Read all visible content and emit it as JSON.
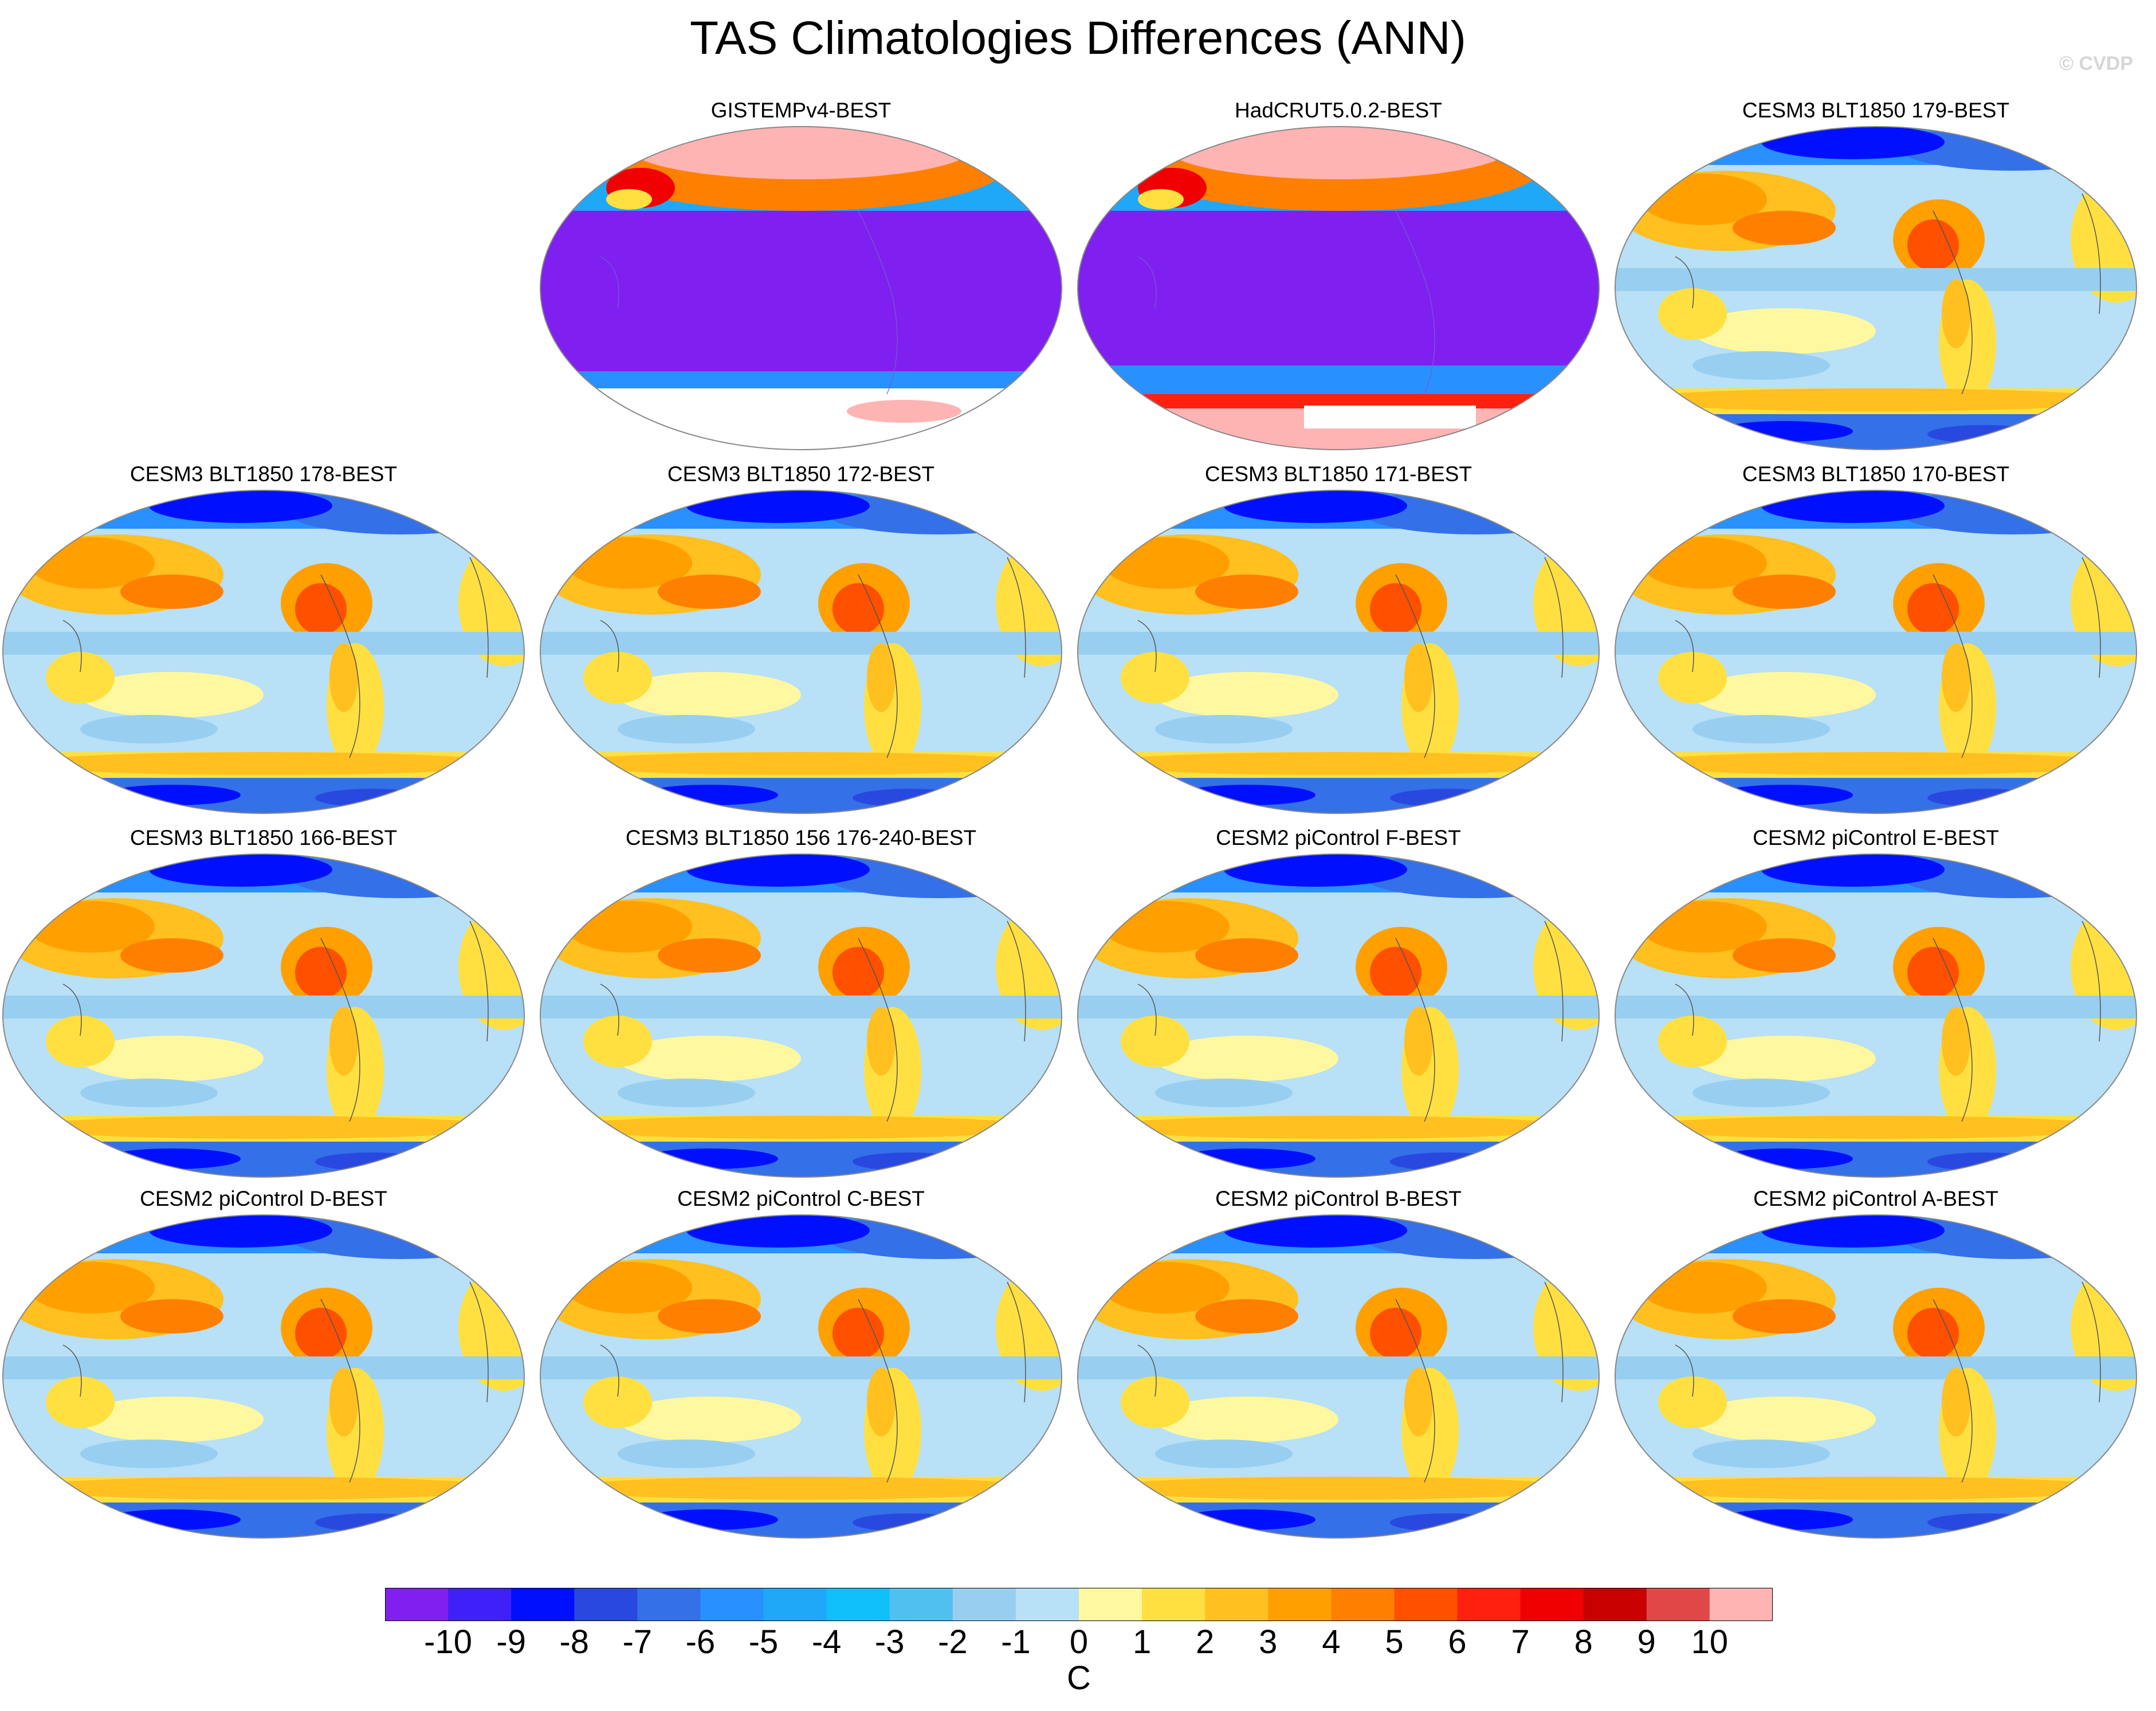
{
  "title": "TAS Climatologies Differences (ANN)",
  "watermark": "© CVDP",
  "panels": [
    {
      "label": "GISTEMPv4-BEST",
      "style": "obs-gistemp"
    },
    {
      "label": "HadCRUT5.0.2-BEST",
      "style": "obs-hadcrut"
    },
    {
      "label": "CESM3 BLT1850 179-BEST",
      "style": "model"
    },
    {
      "label": "CESM3 BLT1850 178-BEST",
      "style": "model"
    },
    {
      "label": "CESM3 BLT1850 172-BEST",
      "style": "model"
    },
    {
      "label": "CESM3 BLT1850 171-BEST",
      "style": "model"
    },
    {
      "label": "CESM3 BLT1850 170-BEST",
      "style": "model"
    },
    {
      "label": "CESM3 BLT1850 166-BEST",
      "style": "model"
    },
    {
      "label": "CESM3 BLT1850 156 176-240-BEST",
      "style": "model"
    },
    {
      "label": "CESM2 piControl F-BEST",
      "style": "model"
    },
    {
      "label": "CESM2 piControl E-BEST",
      "style": "model"
    },
    {
      "label": "CESM2 piControl D-BEST",
      "style": "model"
    },
    {
      "label": "CESM2 piControl C-BEST",
      "style": "model"
    },
    {
      "label": "CESM2 piControl B-BEST",
      "style": "model"
    },
    {
      "label": "CESM2 piControl A-BEST",
      "style": "model"
    }
  ],
  "colorbar": {
    "colors": [
      "#7f20f0",
      "#4020f8",
      "#0010ff",
      "#2848e0",
      "#3470e8",
      "#2890ff",
      "#20a8f8",
      "#10c0f8",
      "#50c0f0",
      "#98cff0",
      "#b8e0f6",
      "#fff8a0",
      "#ffe040",
      "#ffc020",
      "#ffa000",
      "#ff8000",
      "#ff5000",
      "#ff2010",
      "#f00000",
      "#c80000",
      "#e04848",
      "#ffb4b4"
    ],
    "labels": [
      "-10",
      "-9",
      "-8",
      "-7",
      "-6",
      "-5",
      "-4",
      "-3",
      "-2",
      "-1",
      "0",
      "1",
      "2",
      "3",
      "4",
      "5",
      "6",
      "7",
      "8",
      "9",
      "10"
    ],
    "units": "C"
  }
}
